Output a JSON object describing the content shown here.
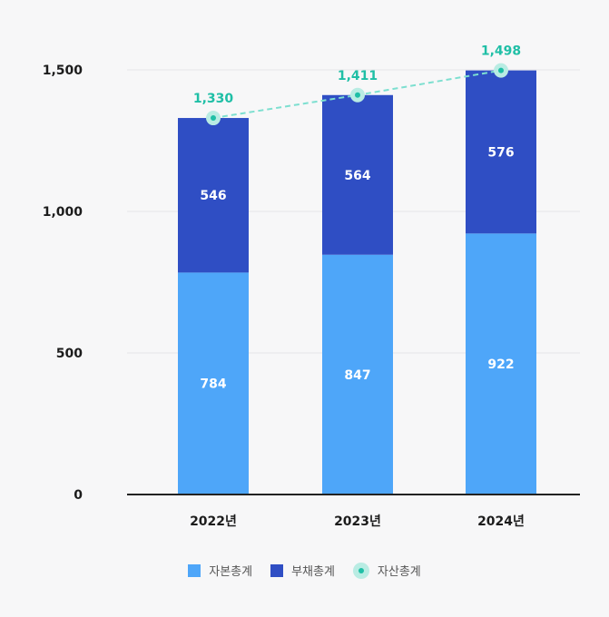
{
  "chart_data": {
    "type": "bar",
    "stacked": true,
    "categories": [
      "2022년",
      "2023년",
      "2024년"
    ],
    "series": [
      {
        "name": "자본총계",
        "kind": "bar",
        "color": "#4ea6f9",
        "values": [
          784,
          847,
          922
        ]
      },
      {
        "name": "부채총계",
        "kind": "bar",
        "color": "#2f4ec4",
        "values": [
          546,
          564,
          576
        ]
      },
      {
        "name": "자산총계",
        "kind": "line",
        "color": "#1fbfa6",
        "values": [
          1330,
          1411,
          1498
        ]
      }
    ],
    "value_labels": {
      "자본총계": [
        "784",
        "847",
        "922"
      ],
      "부채총계": [
        "546",
        "564",
        "576"
      ],
      "자산총계": [
        "1,330",
        "1,411",
        "1,498"
      ]
    },
    "y_ticks": [
      0,
      500,
      1000,
      1500
    ],
    "y_tick_labels": [
      "0",
      "500",
      "1,000",
      "1,500"
    ],
    "ylim": [
      0,
      1500
    ],
    "grid": true,
    "legend_position": "bottom"
  }
}
